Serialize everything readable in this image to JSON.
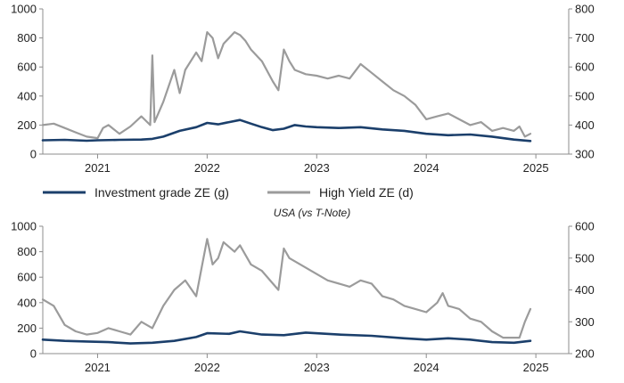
{
  "colors": {
    "investment_grade": "#1b3f6b",
    "high_yield": "#9b9b9b",
    "axis": "#8c8c8c"
  },
  "legend": {
    "investment_grade": "Investment grade ZE (g)",
    "high_yield": "High Yield ZE (d)"
  },
  "subtitle": "USA (vs T-Note)",
  "chart_data": [
    {
      "type": "line",
      "title": "",
      "x_range": [
        2020.5,
        2025.3
      ],
      "x_ticks": [
        "2021",
        "2022",
        "2023",
        "2024",
        "2025"
      ],
      "x_tick_values": [
        2021,
        2022,
        2023,
        2024,
        2025
      ],
      "ylim_left": [
        0,
        1000
      ],
      "y_ticks_left": [
        "0",
        "200",
        "400",
        "600",
        "800",
        "1000"
      ],
      "ylim_right": [
        300,
        800
      ],
      "y_ticks_right": [
        "300",
        "400",
        "500",
        "600",
        "700",
        "800"
      ],
      "grid": false,
      "legend_position": "bottom",
      "series": [
        {
          "name": "Investment grade ZE (g)",
          "axis": "left",
          "x": [
            2020.5,
            2020.7,
            2020.9,
            2021.0,
            2021.2,
            2021.4,
            2021.5,
            2021.6,
            2021.75,
            2021.9,
            2022.0,
            2022.1,
            2022.2,
            2022.3,
            2022.4,
            2022.5,
            2022.6,
            2022.7,
            2022.8,
            2022.9,
            2023.0,
            2023.2,
            2023.4,
            2023.6,
            2023.8,
            2024.0,
            2024.2,
            2024.4,
            2024.6,
            2024.8,
            2024.95
          ],
          "y": [
            95,
            98,
            92,
            95,
            98,
            100,
            105,
            120,
            160,
            185,
            215,
            205,
            220,
            235,
            210,
            185,
            165,
            175,
            200,
            190,
            185,
            180,
            185,
            170,
            160,
            140,
            130,
            135,
            120,
            100,
            90
          ]
        },
        {
          "name": "High Yield ZE (d)",
          "axis": "right",
          "x": [
            2020.5,
            2020.6,
            2020.7,
            2020.8,
            2020.9,
            2021.0,
            2021.05,
            2021.1,
            2021.2,
            2021.3,
            2021.4,
            2021.48,
            2021.5,
            2021.52,
            2021.6,
            2021.7,
            2021.75,
            2021.8,
            2021.9,
            2021.95,
            2022.0,
            2022.05,
            2022.1,
            2022.15,
            2022.25,
            2022.3,
            2022.35,
            2022.4,
            2022.5,
            2022.6,
            2022.65,
            2022.7,
            2022.75,
            2022.8,
            2022.9,
            2023.0,
            2023.1,
            2023.2,
            2023.3,
            2023.4,
            2023.5,
            2023.6,
            2023.7,
            2023.8,
            2023.9,
            2024.0,
            2024.1,
            2024.2,
            2024.3,
            2024.4,
            2024.5,
            2024.6,
            2024.7,
            2024.8,
            2024.85,
            2024.9,
            2024.95
          ],
          "y": [
            400,
            405,
            390,
            375,
            360,
            355,
            390,
            400,
            370,
            395,
            430,
            400,
            640,
            410,
            480,
            590,
            510,
            590,
            650,
            620,
            720,
            700,
            630,
            680,
            720,
            710,
            690,
            660,
            620,
            550,
            520,
            660,
            620,
            590,
            575,
            570,
            560,
            570,
            560,
            610,
            580,
            550,
            520,
            500,
            470,
            420,
            430,
            440,
            420,
            400,
            410,
            380,
            390,
            380,
            395,
            360,
            370
          ]
        }
      ]
    },
    {
      "type": "line",
      "title": "USA (vs T-Note)",
      "x_range": [
        2020.5,
        2025.3
      ],
      "x_ticks": [
        "2021",
        "2022",
        "2023",
        "2024",
        "2025"
      ],
      "x_tick_values": [
        2021,
        2022,
        2023,
        2024,
        2025
      ],
      "ylim_left": [
        0,
        1000
      ],
      "y_ticks_left": [
        "0",
        "200",
        "400",
        "600",
        "800",
        "1000"
      ],
      "ylim_right": [
        200,
        600
      ],
      "y_ticks_right": [
        "200",
        "300",
        "400",
        "500",
        "600"
      ],
      "grid": false,
      "series": [
        {
          "name": "Investment grade ZE (g)",
          "axis": "left",
          "x": [
            2020.5,
            2020.7,
            2020.9,
            2021.1,
            2021.3,
            2021.5,
            2021.7,
            2021.9,
            2022.0,
            2022.2,
            2022.3,
            2022.5,
            2022.7,
            2022.9,
            2023.2,
            2023.5,
            2023.8,
            2024.0,
            2024.2,
            2024.4,
            2024.6,
            2024.8,
            2024.95
          ],
          "y": [
            110,
            100,
            95,
            90,
            80,
            85,
            100,
            130,
            160,
            155,
            175,
            150,
            145,
            165,
            150,
            140,
            120,
            110,
            120,
            110,
            90,
            85,
            100
          ]
        },
        {
          "name": "High Yield ZE (d)",
          "axis": "right",
          "x": [
            2020.5,
            2020.6,
            2020.7,
            2020.8,
            2020.9,
            2021.0,
            2021.1,
            2021.2,
            2021.3,
            2021.4,
            2021.5,
            2021.6,
            2021.7,
            2021.8,
            2021.9,
            2021.95,
            2022.0,
            2022.05,
            2022.1,
            2022.15,
            2022.25,
            2022.3,
            2022.4,
            2022.5,
            2022.6,
            2022.65,
            2022.7,
            2022.75,
            2022.85,
            2022.95,
            2023.1,
            2023.3,
            2023.4,
            2023.5,
            2023.6,
            2023.7,
            2023.8,
            2023.9,
            2024.0,
            2024.1,
            2024.15,
            2024.2,
            2024.3,
            2024.4,
            2024.5,
            2024.6,
            2024.7,
            2024.8,
            2024.85,
            2024.9,
            2024.95
          ],
          "y": [
            370,
            350,
            290,
            270,
            260,
            265,
            280,
            270,
            260,
            300,
            280,
            350,
            400,
            430,
            380,
            470,
            560,
            480,
            500,
            550,
            520,
            540,
            480,
            460,
            420,
            400,
            530,
            500,
            480,
            460,
            430,
            410,
            430,
            420,
            380,
            370,
            350,
            340,
            330,
            360,
            390,
            350,
            340,
            310,
            300,
            270,
            250,
            250,
            250,
            300,
            340
          ]
        }
      ]
    }
  ]
}
